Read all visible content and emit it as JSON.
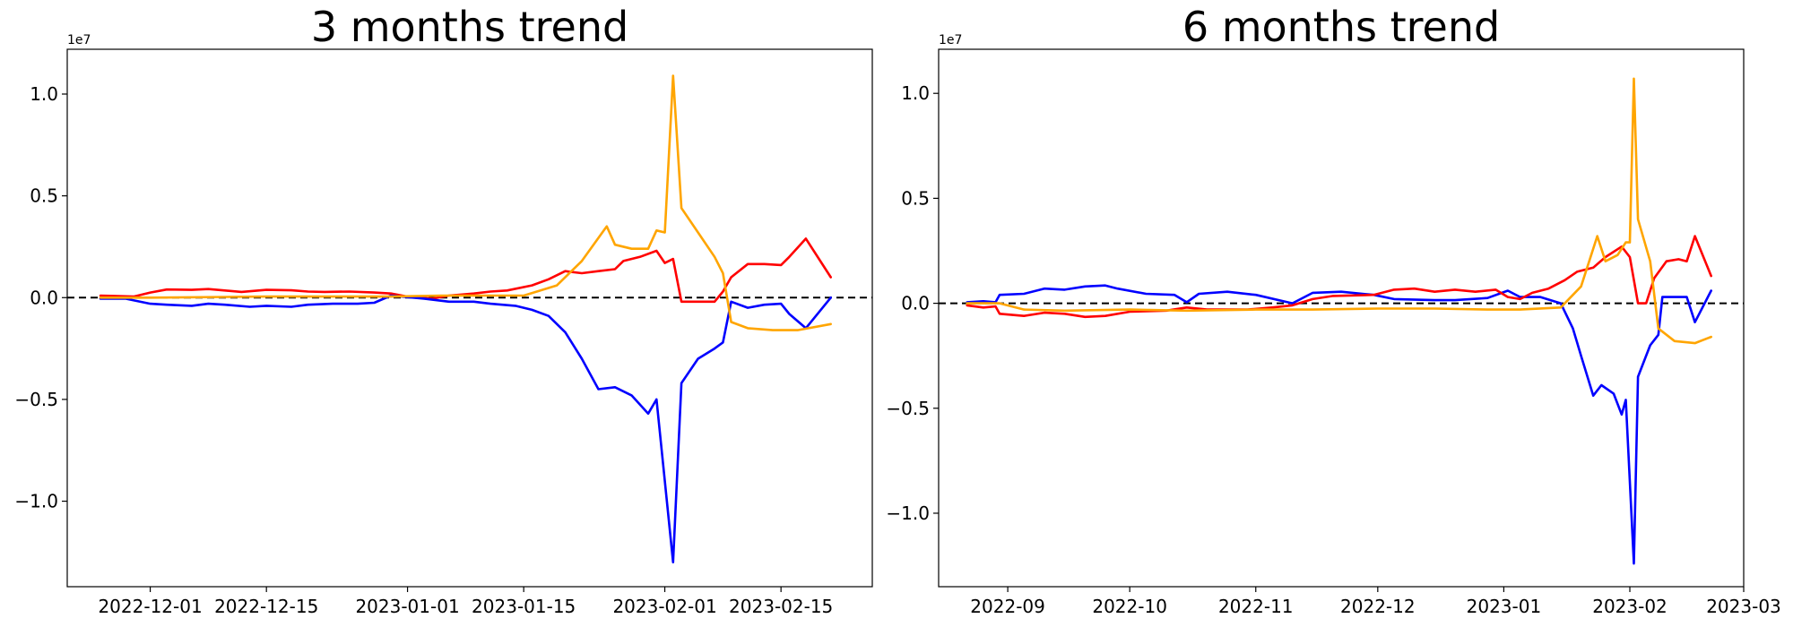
{
  "chart_data": [
    {
      "type": "line",
      "title": "3 months trend",
      "xlabel": "",
      "ylabel": "",
      "x_axis_type": "date",
      "xlim": [
        "2022-11-21",
        "2023-02-26"
      ],
      "ylim": [
        -14200000.0,
        12200000.0
      ],
      "y_offset_label": "1e7",
      "xticks": [
        "2022-12-01",
        "2022-12-15",
        "2023-01-01",
        "2023-01-15",
        "2023-02-01",
        "2023-02-15"
      ],
      "yticks": [
        {
          "value": 10000000.0,
          "label": "1.0"
        },
        {
          "value": 5000000.0,
          "label": "0.5"
        },
        {
          "value": 0,
          "label": "0.0"
        },
        {
          "value": -5000000.0,
          "label": "−0.5"
        },
        {
          "value": -10000000.0,
          "label": "−1.0"
        }
      ],
      "zero_line": "dashed black",
      "grid": false,
      "series": [
        {
          "color": "#ff0000",
          "points": [
            [
              "2022-11-25",
              100000
            ],
            [
              "2022-11-29",
              50000
            ],
            [
              "2022-12-01",
              250000
            ],
            [
              "2022-12-03",
              400000
            ],
            [
              "2022-12-06",
              380000
            ],
            [
              "2022-12-08",
              420000
            ],
            [
              "2022-12-10",
              350000
            ],
            [
              "2022-12-12",
              280000
            ],
            [
              "2022-12-15",
              380000
            ],
            [
              "2022-12-18",
              360000
            ],
            [
              "2022-12-20",
              300000
            ],
            [
              "2022-12-22",
              280000
            ],
            [
              "2022-12-25",
              300000
            ],
            [
              "2022-12-28",
              250000
            ],
            [
              "2022-12-30",
              200000
            ],
            [
              "2023-01-01",
              50000
            ],
            [
              "2023-01-04",
              -50000
            ],
            [
              "2023-01-06",
              100000
            ],
            [
              "2023-01-09",
              200000
            ],
            [
              "2023-01-11",
              300000
            ],
            [
              "2023-01-13",
              350000
            ],
            [
              "2023-01-16",
              600000
            ],
            [
              "2023-01-18",
              900000
            ],
            [
              "2023-01-20",
              1300000
            ],
            [
              "2023-01-22",
              1200000
            ],
            [
              "2023-01-24",
              1300000
            ],
            [
              "2023-01-26",
              1400000
            ],
            [
              "2023-01-27",
              1800000
            ],
            [
              "2023-01-29",
              2000000
            ],
            [
              "2023-01-31",
              2300000
            ],
            [
              "2023-02-01",
              1700000
            ],
            [
              "2023-02-02",
              1900000
            ],
            [
              "2023-02-03",
              -200000
            ],
            [
              "2023-02-05",
              -200000
            ],
            [
              "2023-02-07",
              -200000
            ],
            [
              "2023-02-08",
              300000
            ],
            [
              "2023-02-09",
              1000000
            ],
            [
              "2023-02-11",
              1650000
            ],
            [
              "2023-02-13",
              1650000
            ],
            [
              "2023-02-15",
              1600000
            ],
            [
              "2023-02-16",
              2000000
            ],
            [
              "2023-02-18",
              2900000
            ],
            [
              "2023-02-21",
              1000000
            ]
          ]
        },
        {
          "color": "#0000ff",
          "points": [
            [
              "2022-11-25",
              -50000
            ],
            [
              "2022-11-28",
              -50000
            ],
            [
              "2022-12-01",
              -300000
            ],
            [
              "2022-12-03",
              -350000
            ],
            [
              "2022-12-06",
              -400000
            ],
            [
              "2022-12-08",
              -300000
            ],
            [
              "2022-12-10",
              -350000
            ],
            [
              "2022-12-13",
              -450000
            ],
            [
              "2022-12-15",
              -400000
            ],
            [
              "2022-12-18",
              -450000
            ],
            [
              "2022-12-20",
              -350000
            ],
            [
              "2022-12-23",
              -300000
            ],
            [
              "2022-12-26",
              -300000
            ],
            [
              "2022-12-28",
              -250000
            ],
            [
              "2022-12-30",
              100000
            ],
            [
              "2023-01-03",
              -50000
            ],
            [
              "2023-01-06",
              -200000
            ],
            [
              "2023-01-09",
              -200000
            ],
            [
              "2023-01-11",
              -300000
            ],
            [
              "2023-01-14",
              -400000
            ],
            [
              "2023-01-16",
              -600000
            ],
            [
              "2023-01-18",
              -900000
            ],
            [
              "2023-01-20",
              -1700000
            ],
            [
              "2023-01-22",
              -3000000
            ],
            [
              "2023-01-24",
              -4500000
            ],
            [
              "2023-01-26",
              -4400000
            ],
            [
              "2023-01-28",
              -4800000
            ],
            [
              "2023-01-30",
              -5700000
            ],
            [
              "2023-01-31",
              -5000000
            ],
            [
              "2023-02-02",
              -13000000
            ],
            [
              "2023-02-03",
              -4200000
            ],
            [
              "2023-02-05",
              -3000000
            ],
            [
              "2023-02-07",
              -2500000
            ],
            [
              "2023-02-08",
              -2200000
            ],
            [
              "2023-02-09",
              -200000
            ],
            [
              "2023-02-11",
              -500000
            ],
            [
              "2023-02-13",
              -350000
            ],
            [
              "2023-02-15",
              -300000
            ],
            [
              "2023-02-16",
              -800000
            ],
            [
              "2023-02-18",
              -1500000
            ],
            [
              "2023-02-21",
              0
            ]
          ]
        },
        {
          "color": "#ffa500",
          "points": [
            [
              "2022-11-25",
              0
            ],
            [
              "2022-12-01",
              0
            ],
            [
              "2022-12-15",
              50000
            ],
            [
              "2022-12-30",
              50000
            ],
            [
              "2023-01-05",
              100000
            ],
            [
              "2023-01-10",
              100000
            ],
            [
              "2023-01-15",
              100000
            ],
            [
              "2023-01-19",
              600000
            ],
            [
              "2023-01-22",
              1800000
            ],
            [
              "2023-01-25",
              3500000
            ],
            [
              "2023-01-26",
              2600000
            ],
            [
              "2023-01-28",
              2400000
            ],
            [
              "2023-01-30",
              2400000
            ],
            [
              "2023-01-31",
              3300000
            ],
            [
              "2023-02-01",
              3200000
            ],
            [
              "2023-02-02",
              10900000
            ],
            [
              "2023-02-03",
              4400000
            ],
            [
              "2023-02-05",
              3200000
            ],
            [
              "2023-02-07",
              2000000
            ],
            [
              "2023-02-08",
              1200000
            ],
            [
              "2023-02-09",
              -1200000
            ],
            [
              "2023-02-11",
              -1500000
            ],
            [
              "2023-02-14",
              -1600000
            ],
            [
              "2023-02-17",
              -1600000
            ],
            [
              "2023-02-21",
              -1300000
            ]
          ]
        }
      ]
    },
    {
      "type": "line",
      "title": "6 months trend",
      "xlabel": "",
      "ylabel": "",
      "x_axis_type": "date",
      "xlim": [
        "2022-08-15",
        "2023-03-01"
      ],
      "ylim": [
        -13500000.0,
        12100000.0
      ],
      "y_offset_label": "1e7",
      "xticks": [
        "2022-09",
        "2022-10",
        "2022-11",
        "2022-12",
        "2023-01",
        "2023-02",
        "2023-03"
      ],
      "yticks": [
        {
          "value": 10000000.0,
          "label": "1.0"
        },
        {
          "value": 5000000.0,
          "label": "0.5"
        },
        {
          "value": 0,
          "label": "0.0"
        },
        {
          "value": -5000000.0,
          "label": "−0.5"
        },
        {
          "value": -10000000.0,
          "label": "−1.0"
        }
      ],
      "zero_line": "dashed black",
      "grid": false,
      "series": [
        {
          "color": "#0000ff",
          "points": [
            [
              "2022-08-22",
              50000
            ],
            [
              "2022-08-26",
              100000
            ],
            [
              "2022-08-29",
              50000
            ],
            [
              "2022-08-30",
              400000
            ],
            [
              "2022-09-05",
              450000
            ],
            [
              "2022-09-10",
              700000
            ],
            [
              "2022-09-15",
              650000
            ],
            [
              "2022-09-20",
              800000
            ],
            [
              "2022-09-25",
              850000
            ],
            [
              "2022-09-28",
              700000
            ],
            [
              "2022-10-05",
              450000
            ],
            [
              "2022-10-12",
              400000
            ],
            [
              "2022-10-15",
              50000
            ],
            [
              "2022-10-18",
              450000
            ],
            [
              "2022-10-25",
              550000
            ],
            [
              "2022-11-01",
              400000
            ],
            [
              "2022-11-10",
              0
            ],
            [
              "2022-11-15",
              500000
            ],
            [
              "2022-11-22",
              550000
            ],
            [
              "2022-11-30",
              400000
            ],
            [
              "2022-12-05",
              200000
            ],
            [
              "2022-12-15",
              150000
            ],
            [
              "2022-12-20",
              150000
            ],
            [
              "2022-12-28",
              250000
            ],
            [
              "2023-01-02",
              600000
            ],
            [
              "2023-01-05",
              300000
            ],
            [
              "2023-01-10",
              300000
            ],
            [
              "2023-01-15",
              0
            ],
            [
              "2023-01-18",
              -1200000
            ],
            [
              "2023-01-20",
              -2500000
            ],
            [
              "2023-01-23",
              -4400000
            ],
            [
              "2023-01-25",
              -3900000
            ],
            [
              "2023-01-28",
              -4300000
            ],
            [
              "2023-01-30",
              -5300000
            ],
            [
              "2023-01-31",
              -4600000
            ],
            [
              "2023-02-02",
              -12400000
            ],
            [
              "2023-02-03",
              -3500000
            ],
            [
              "2023-02-06",
              -2000000
            ],
            [
              "2023-02-08",
              -1500000
            ],
            [
              "2023-02-09",
              300000
            ],
            [
              "2023-02-12",
              300000
            ],
            [
              "2023-02-15",
              300000
            ],
            [
              "2023-02-17",
              -900000
            ],
            [
              "2023-02-21",
              600000
            ]
          ]
        },
        {
          "color": "#ff0000",
          "points": [
            [
              "2022-08-22",
              -100000
            ],
            [
              "2022-08-26",
              -200000
            ],
            [
              "2022-08-29",
              -150000
            ],
            [
              "2022-08-30",
              -500000
            ],
            [
              "2022-09-05",
              -600000
            ],
            [
              "2022-09-10",
              -450000
            ],
            [
              "2022-09-15",
              -500000
            ],
            [
              "2022-09-20",
              -650000
            ],
            [
              "2022-09-25",
              -600000
            ],
            [
              "2022-10-01",
              -400000
            ],
            [
              "2022-10-10",
              -350000
            ],
            [
              "2022-10-15",
              -200000
            ],
            [
              "2022-10-20",
              -300000
            ],
            [
              "2022-10-30",
              -300000
            ],
            [
              "2022-11-05",
              -200000
            ],
            [
              "2022-11-10",
              -100000
            ],
            [
              "2022-11-15",
              200000
            ],
            [
              "2022-11-20",
              350000
            ],
            [
              "2022-11-30",
              400000
            ],
            [
              "2022-12-05",
              650000
            ],
            [
              "2022-12-10",
              700000
            ],
            [
              "2022-12-15",
              550000
            ],
            [
              "2022-12-20",
              650000
            ],
            [
              "2022-12-25",
              550000
            ],
            [
              "2022-12-30",
              650000
            ],
            [
              "2023-01-02",
              300000
            ],
            [
              "2023-01-05",
              200000
            ],
            [
              "2023-01-08",
              500000
            ],
            [
              "2023-01-12",
              700000
            ],
            [
              "2023-01-16",
              1100000
            ],
            [
              "2023-01-19",
              1500000
            ],
            [
              "2023-01-23",
              1700000
            ],
            [
              "2023-01-26",
              2200000
            ],
            [
              "2023-01-30",
              2700000
            ],
            [
              "2023-02-01",
              2200000
            ],
            [
              "2023-02-03",
              0
            ],
            [
              "2023-02-05",
              0
            ],
            [
              "2023-02-07",
              1200000
            ],
            [
              "2023-02-10",
              2000000
            ],
            [
              "2023-02-13",
              2100000
            ],
            [
              "2023-02-15",
              2000000
            ],
            [
              "2023-02-17",
              3200000
            ],
            [
              "2023-02-21",
              1300000
            ]
          ]
        },
        {
          "color": "#ffa500",
          "points": [
            [
              "2022-08-22",
              0
            ],
            [
              "2022-08-30",
              0
            ],
            [
              "2022-09-05",
              -300000
            ],
            [
              "2022-09-15",
              -350000
            ],
            [
              "2022-10-01",
              -300000
            ],
            [
              "2022-10-15",
              -350000
            ],
            [
              "2022-11-01",
              -300000
            ],
            [
              "2022-11-15",
              -300000
            ],
            [
              "2022-12-01",
              -250000
            ],
            [
              "2022-12-15",
              -250000
            ],
            [
              "2022-12-28",
              -300000
            ],
            [
              "2023-01-05",
              -300000
            ],
            [
              "2023-01-15",
              -200000
            ],
            [
              "2023-01-20",
              800000
            ],
            [
              "2023-01-24",
              3200000
            ],
            [
              "2023-01-26",
              2000000
            ],
            [
              "2023-01-29",
              2300000
            ],
            [
              "2023-01-31",
              2900000
            ],
            [
              "2023-02-01",
              2900000
            ],
            [
              "2023-02-02",
              10700000
            ],
            [
              "2023-02-03",
              4000000
            ],
            [
              "2023-02-06",
              2000000
            ],
            [
              "2023-02-08",
              -1200000
            ],
            [
              "2023-02-12",
              -1800000
            ],
            [
              "2023-02-17",
              -1900000
            ],
            [
              "2023-02-21",
              -1600000
            ]
          ]
        }
      ]
    }
  ]
}
